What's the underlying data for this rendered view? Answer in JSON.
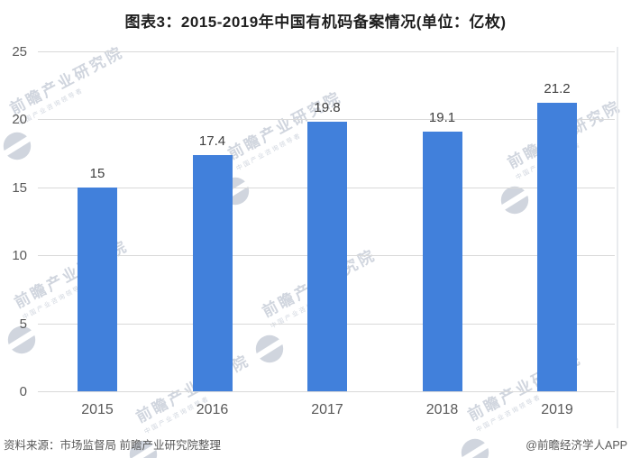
{
  "title": "图表3：2015-2019年中国有机码备案情况(单位：亿枚)",
  "chart_data": {
    "type": "bar",
    "title": "图表3：2015-2019年中国有机码备案情况",
    "unit_label": "亿枚",
    "categories": [
      "2015",
      "2016",
      "2017",
      "2018",
      "2019"
    ],
    "values": [
      15,
      17.4,
      19.8,
      19.1,
      21.2
    ],
    "value_labels": [
      "15",
      "17.4",
      "19.8",
      "19.1",
      "21.2"
    ],
    "xlabel": "",
    "ylabel": "",
    "ylim": [
      0,
      25
    ],
    "yticks": [
      0,
      5,
      10,
      15,
      20,
      25
    ],
    "grid": true,
    "legend_position": "none",
    "bar_color": "#4180db",
    "gridline_color": "#d9d9d9",
    "tick_label_color": "#595959",
    "value_label_color": "#3f3f3f"
  },
  "footer": {
    "source": "资料来源：市场监督局 前瞻产业研究院整理",
    "credit": "@前瞻经济学人APP"
  },
  "watermark": {
    "text": "前瞻产业研究院",
    "subtext": "中国产业咨询领导者",
    "color": "#aab4c4"
  }
}
